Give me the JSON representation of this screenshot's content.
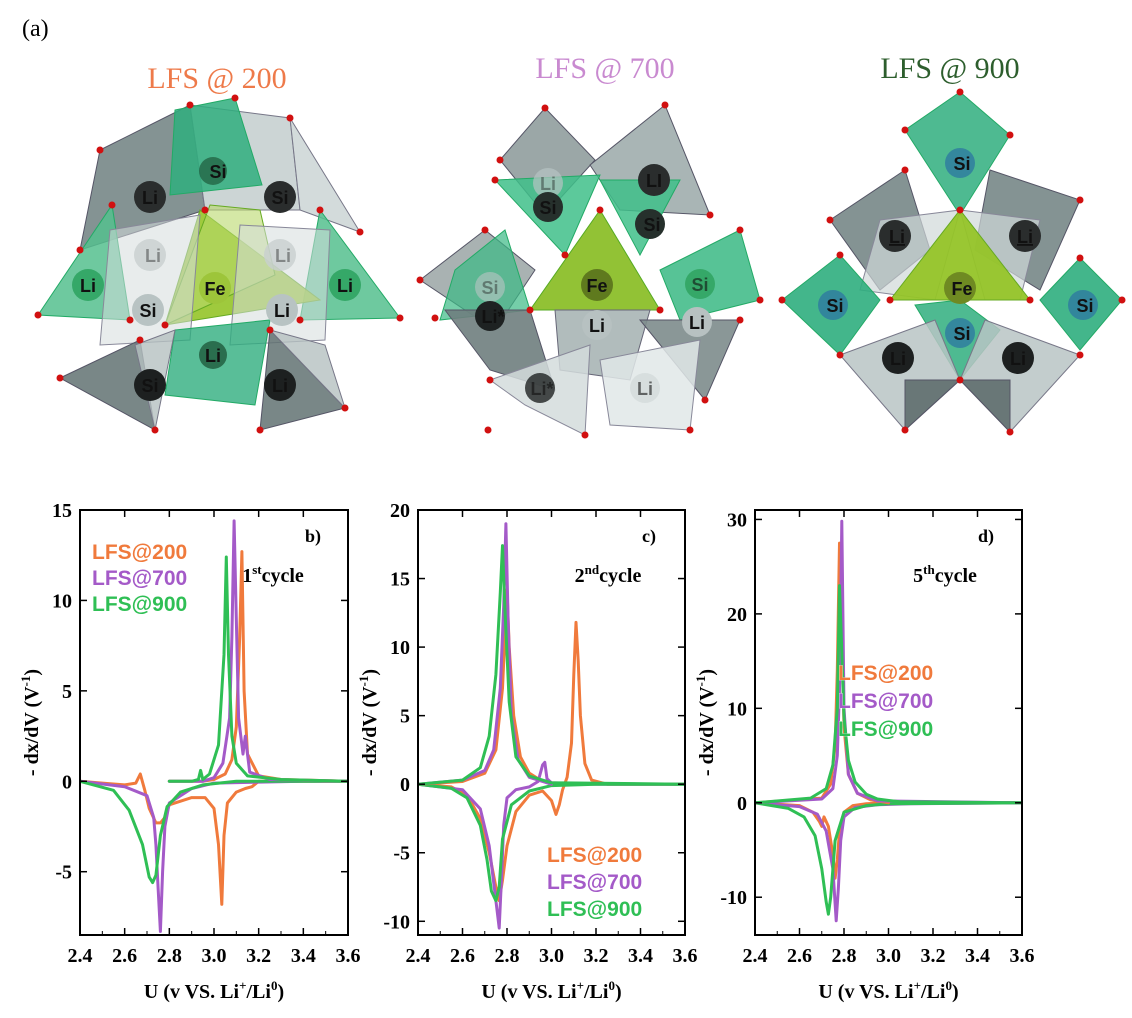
{
  "figure": {
    "panel_a_label": "(a)",
    "structures": [
      {
        "title": "LFS @ 200",
        "color": "#ee7a4a",
        "atoms": [
          "Si",
          "Li",
          "Si",
          "Li",
          "Li",
          "Li",
          "Fe",
          "Li",
          "Si",
          "Li",
          "Li",
          "Si",
          "Li",
          "Li"
        ]
      },
      {
        "title": "LFS @ 700",
        "color": "#c98ad0",
        "atoms": [
          "Li",
          "Si",
          "LI",
          "Si",
          "Si",
          "Fe",
          "Si",
          "Li*",
          "Li",
          "Li",
          "Li*",
          "Li"
        ]
      },
      {
        "title": "LFS @ 900",
        "color": "#2d5e2d",
        "atoms": [
          "Si",
          "Li",
          "Li",
          "Si",
          "Fe",
          "Si",
          "Si",
          "Li",
          "Li"
        ]
      }
    ],
    "colors": {
      "LFS@200": "#f07a3c",
      "LFS@700": "#a45ac8",
      "LFS@900": "#2fbf55",
      "tetra_gray": "#8a9a9a",
      "tetra_green": "#3fba8a",
      "tetra_fe": "#8fbf2a",
      "oxygen": "#d11010"
    }
  },
  "chart_data": [
    {
      "type": "line",
      "panel": "b)",
      "cycle": "1st cycle",
      "cycle_main": "1",
      "cycle_sup": "st",
      "cycle_rest": "cycle",
      "xlabel_main": "U (v VS. Li",
      "xlabel_sup1": "+",
      "xlabel_mid": "/Li",
      "xlabel_sup2": "0",
      "xlabel_end": ")",
      "ylabel_main": "- dx/dV (V",
      "ylabel_sup": "-1",
      "ylabel_end": ")",
      "xlim": [
        2.4,
        3.6
      ],
      "ylim": [
        -8.5,
        15
      ],
      "xticks": [
        "2.4",
        "2.6",
        "2.8",
        "3.0",
        "3.2",
        "3.4",
        "3.6"
      ],
      "yticks": [
        {
          "v": -5,
          "label": "-5"
        },
        {
          "v": 0,
          "label": "0"
        },
        {
          "v": 5,
          "label": "5"
        },
        {
          "v": 10,
          "label": "10"
        },
        {
          "v": 15,
          "label": "15"
        }
      ],
      "legend_position": "top-left",
      "series": [
        {
          "name": "LFS@200",
          "color": "#f07a3c",
          "x": [
            2.4,
            2.5,
            2.6,
            2.65,
            2.67,
            2.69,
            2.71,
            2.74,
            2.76,
            2.78,
            2.8,
            2.9,
            2.96,
            3.0,
            3.02,
            3.035,
            3.045,
            3.06,
            3.1,
            3.14,
            3.17,
            3.19,
            3.2,
            3.4,
            3.6
          ],
          "y": [
            0,
            -0.1,
            -0.2,
            -0.1,
            0.4,
            -0.5,
            -1.5,
            -2.3,
            -2.3,
            -2.0,
            -1.3,
            -0.9,
            -0.9,
            -1.5,
            -3.5,
            -6.8,
            -3.0,
            -1.2,
            -0.6,
            -0.4,
            -0.3,
            -0.1,
            0,
            0,
            0
          ]
        },
        {
          "name": "LFS@700",
          "color": "#a45ac8",
          "x": [
            2.4,
            2.6,
            2.7,
            2.73,
            2.74,
            2.75,
            2.76,
            2.77,
            2.78,
            2.8,
            2.9,
            3.0,
            3.4,
            3.6
          ],
          "y": [
            0,
            -0.3,
            -0.8,
            -2.0,
            -3.5,
            -6.0,
            -8.3,
            -5.0,
            -2.5,
            -1.2,
            -0.4,
            -0.1,
            0,
            0
          ]
        },
        {
          "name": "LFS@900",
          "color": "#2fbf55",
          "x": [
            2.4,
            2.55,
            2.62,
            2.68,
            2.71,
            2.725,
            2.74,
            2.76,
            2.79,
            2.85,
            2.95,
            3.1,
            3.3,
            3.6
          ],
          "y": [
            0,
            -0.5,
            -1.6,
            -3.5,
            -5.3,
            -5.6,
            -5.2,
            -3.0,
            -1.4,
            -0.6,
            -0.2,
            0,
            0,
            0
          ]
        },
        {
          "name": "LFS@200",
          "color": "#f07a3c",
          "x": [
            2.8,
            2.95,
            3.0,
            3.05,
            3.08,
            3.1,
            3.115,
            3.125,
            3.135,
            3.15,
            3.2,
            3.3,
            3.6
          ],
          "y": [
            0,
            0,
            0.1,
            0.4,
            1.2,
            3.0,
            8.0,
            12.7,
            5.0,
            1.5,
            0.3,
            0.1,
            0
          ]
        },
        {
          "name": "LFS@700",
          "color": "#a45ac8",
          "x": [
            2.8,
            2.95,
            3.0,
            3.04,
            3.07,
            3.08,
            3.09,
            3.1,
            3.11,
            3.13,
            3.14,
            3.16,
            3.25,
            3.6
          ],
          "y": [
            0,
            0,
            0.2,
            1.0,
            3.5,
            8.0,
            14.4,
            9.0,
            3.5,
            1.5,
            2.5,
            0.5,
            0.1,
            0
          ]
        },
        {
          "name": "LFS@900",
          "color": "#2fbf55",
          "x": [
            2.8,
            2.9,
            2.93,
            2.94,
            2.95,
            2.98,
            3.02,
            3.045,
            3.055,
            3.065,
            3.08,
            3.1,
            3.15,
            3.3,
            3.6
          ],
          "y": [
            0,
            0,
            0.1,
            0.6,
            0.1,
            0.4,
            2.0,
            7.0,
            12.4,
            7.0,
            2.5,
            1.0,
            0.3,
            0.1,
            0
          ]
        }
      ]
    },
    {
      "type": "line",
      "panel": "c)",
      "cycle": "2nd cycle",
      "cycle_main": "2",
      "cycle_sup": "nd",
      "cycle_rest": "cycle",
      "xlabel_main": "U (v VS. Li",
      "xlabel_sup1": "+",
      "xlabel_mid": "/Li",
      "xlabel_sup2": "0",
      "xlabel_end": ")",
      "ylabel_main": "- dx/dV (V",
      "ylabel_sup": "-1",
      "ylabel_end": ")",
      "xlim": [
        2.4,
        3.6
      ],
      "ylim": [
        -11,
        20
      ],
      "xticks": [
        "2.4",
        "2.6",
        "2.8",
        "3.0",
        "3.2",
        "3.4",
        "3.6"
      ],
      "yticks": [
        {
          "v": -10,
          "label": "-10"
        },
        {
          "v": -5,
          "label": "-5"
        },
        {
          "v": 0,
          "label": "0"
        },
        {
          "v": 5,
          "label": "5"
        },
        {
          "v": 10,
          "label": "10"
        },
        {
          "v": 15,
          "label": "15"
        },
        {
          "v": 20,
          "label": "20"
        }
      ],
      "legend_position": "bottom-right",
      "series": [
        {
          "name": "LFS@200",
          "color": "#f07a3c",
          "x": [
            2.4,
            2.55,
            2.62,
            2.68,
            2.72,
            2.75,
            2.765,
            2.78,
            2.8,
            2.84,
            2.9,
            2.96,
            3.0,
            3.02,
            3.035,
            3.05,
            3.07,
            3.09,
            3.1,
            3.11,
            3.12,
            3.13,
            3.15,
            3.18,
            3.25,
            3.6
          ],
          "y": [
            0,
            -0.2,
            -0.8,
            -2.5,
            -5.0,
            -7.5,
            -8.5,
            -7.0,
            -4.5,
            -2.0,
            -0.8,
            -0.5,
            -1.2,
            -2.2,
            -1.5,
            -0.4,
            0.5,
            3.0,
            8.0,
            11.8,
            9.0,
            5.0,
            1.5,
            0.3,
            0,
            0
          ]
        },
        {
          "name": "LFS@700",
          "color": "#a45ac8",
          "x": [
            2.4,
            2.6,
            2.68,
            2.72,
            2.75,
            2.765,
            2.775,
            2.785,
            2.8,
            2.84,
            2.9,
            2.94,
            2.96,
            2.97,
            2.98,
            3.0,
            3.2,
            3.6
          ],
          "y": [
            0,
            -0.4,
            -1.8,
            -4.5,
            -8.5,
            -10.5,
            -7.0,
            -3.0,
            -1.0,
            -0.4,
            -0.2,
            0.2,
            1.4,
            1.6,
            0.4,
            0.1,
            0,
            0
          ]
        },
        {
          "name": "LFS@900",
          "color": "#2fbf55",
          "x": [
            2.4,
            2.55,
            2.62,
            2.68,
            2.71,
            2.73,
            2.75,
            2.765,
            2.78,
            2.82,
            2.9,
            3.0,
            3.2,
            3.6
          ],
          "y": [
            0,
            -0.3,
            -1.0,
            -3.0,
            -5.5,
            -7.8,
            -8.5,
            -7.5,
            -4.0,
            -1.5,
            -0.5,
            -0.1,
            0,
            0
          ]
        },
        {
          "name": "LFS@200",
          "color": "#f07a3c",
          "x": [
            2.4,
            2.6,
            2.7,
            2.75,
            2.78,
            2.795,
            2.8,
            2.81,
            2.83,
            2.86,
            2.9,
            2.95,
            3.0
          ],
          "y": [
            0,
            0.2,
            0.8,
            2.5,
            7.0,
            12.5,
            14.2,
            10.0,
            5.0,
            2.0,
            0.8,
            0.3,
            0
          ]
        },
        {
          "name": "LFS@700",
          "color": "#a45ac8",
          "x": [
            2.4,
            2.6,
            2.7,
            2.74,
            2.77,
            2.785,
            2.795,
            2.805,
            2.82,
            2.85,
            2.9,
            3.0
          ],
          "y": [
            0,
            0.3,
            1.0,
            2.5,
            7.0,
            13.0,
            19.0,
            12.0,
            5.0,
            1.8,
            0.5,
            0
          ]
        },
        {
          "name": "LFS@900",
          "color": "#2fbf55",
          "x": [
            2.4,
            2.6,
            2.68,
            2.72,
            2.75,
            2.77,
            2.78,
            2.79,
            2.81,
            2.84,
            2.9,
            3.0,
            3.6
          ],
          "y": [
            0,
            0.3,
            1.2,
            3.5,
            8.0,
            14.0,
            17.4,
            13.0,
            6.0,
            2.0,
            0.6,
            0.1,
            0
          ]
        }
      ]
    },
    {
      "type": "line",
      "panel": "d)",
      "cycle": "5th cycle",
      "cycle_main": "5",
      "cycle_sup": "th",
      "cycle_rest": "cycle",
      "xlabel_main": "U (v VS. Li",
      "xlabel_sup1": "+",
      "xlabel_mid": "/Li",
      "xlabel_sup2": "0",
      "xlabel_end": ")",
      "ylabel_main": "- dx/dV (V",
      "ylabel_sup": "-1",
      "ylabel_end": ")",
      "xlim": [
        2.4,
        3.6
      ],
      "ylim": [
        -14,
        31
      ],
      "xticks": [
        "2.4",
        "2.6",
        "2.8",
        "3.0",
        "3.2",
        "3.4",
        "3.6"
      ],
      "yticks": [
        {
          "v": -10,
          "label": "-10"
        },
        {
          "v": 0,
          "label": "0"
        },
        {
          "v": 10,
          "label": "10"
        },
        {
          "v": 20,
          "label": "20"
        },
        {
          "v": 30,
          "label": "30"
        }
      ],
      "legend_position": "middle-right",
      "series": [
        {
          "name": "LFS@200",
          "color": "#f07a3c",
          "x": [
            2.4,
            2.6,
            2.66,
            2.69,
            2.7,
            2.71,
            2.73,
            2.75,
            2.76,
            2.77,
            2.78,
            2.8,
            2.84,
            2.9,
            3.0,
            3.6
          ],
          "y": [
            0,
            -0.3,
            -1.0,
            -2.0,
            -2.5,
            -1.5,
            -2.5,
            -5.5,
            -8.0,
            -6.0,
            -3.0,
            -1.0,
            -0.3,
            -0.1,
            0,
            0
          ]
        },
        {
          "name": "LFS@700",
          "color": "#a45ac8",
          "x": [
            2.4,
            2.6,
            2.68,
            2.72,
            2.75,
            2.765,
            2.775,
            2.785,
            2.8,
            2.85,
            2.95,
            3.1,
            3.6
          ],
          "y": [
            0,
            -0.4,
            -1.2,
            -3.0,
            -7.0,
            -12.5,
            -9.0,
            -4.0,
            -1.5,
            -0.5,
            -0.2,
            -0.1,
            0
          ]
        },
        {
          "name": "LFS@900",
          "color": "#2fbf55",
          "x": [
            2.4,
            2.55,
            2.62,
            2.67,
            2.7,
            2.72,
            2.73,
            2.74,
            2.76,
            2.8,
            2.9,
            3.0,
            3.6
          ],
          "y": [
            0,
            -0.6,
            -1.5,
            -3.5,
            -7.0,
            -10.5,
            -11.8,
            -10.0,
            -4.0,
            -1.0,
            -0.3,
            -0.1,
            0
          ]
        },
        {
          "name": "LFS@200",
          "color": "#f07a3c",
          "x": [
            2.4,
            2.7,
            2.74,
            2.76,
            2.77,
            2.78,
            2.79,
            2.8,
            2.82,
            2.86,
            2.92,
            3.0
          ],
          "y": [
            0,
            0.5,
            2.0,
            6.0,
            14.0,
            27.5,
            18.0,
            8.0,
            3.0,
            1.0,
            0.3,
            0
          ]
        },
        {
          "name": "LFS@700",
          "color": "#a45ac8",
          "x": [
            2.4,
            2.7,
            2.75,
            2.77,
            2.78,
            2.785,
            2.79,
            2.795,
            2.8,
            2.82,
            2.86,
            2.95,
            3.6
          ],
          "y": [
            0,
            0.4,
            1.5,
            5.0,
            12.0,
            20.0,
            29.8,
            20.0,
            10.0,
            3.0,
            1.0,
            0.2,
            0
          ]
        },
        {
          "name": "LFS@900",
          "color": "#2fbf55",
          "x": [
            2.4,
            2.65,
            2.72,
            2.75,
            2.77,
            2.78,
            2.79,
            2.8,
            2.82,
            2.85,
            2.9,
            2.95,
            3.05,
            3.6
          ],
          "y": [
            0,
            0.5,
            1.5,
            4.0,
            10.0,
            23.0,
            16.0,
            9.0,
            4.5,
            2.2,
            0.9,
            0.4,
            0.1,
            0
          ]
        }
      ]
    }
  ]
}
